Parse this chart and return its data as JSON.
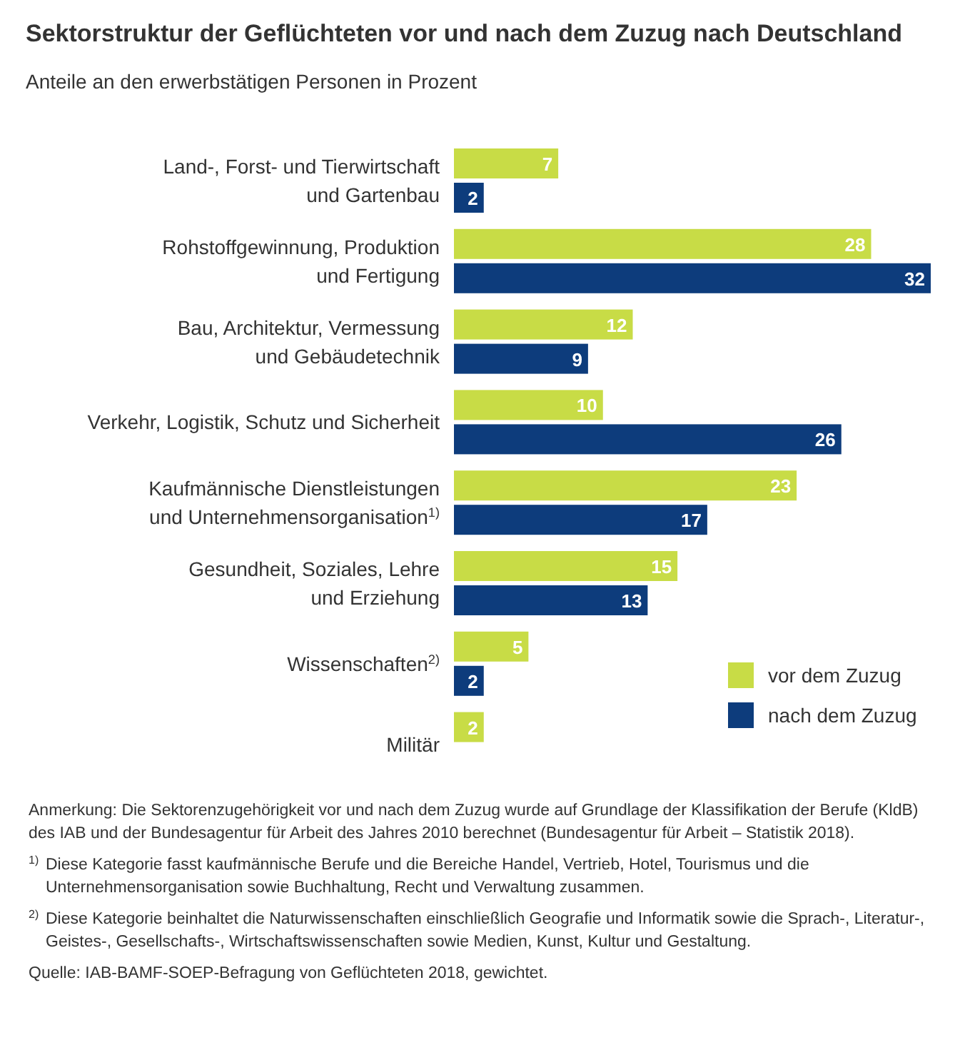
{
  "chart_data": {
    "type": "bar",
    "orientation": "horizontal",
    "title": "Sektorstruktur der Geflüchteten vor und nach dem Zuzug nach Deutschland",
    "subtitle": "Anteile an den erwerbstätigen Personen in Prozent",
    "categories": [
      "Land-, Forst- und Tierwirtschaft und Gartenbau",
      "Rohstoffgewinnung, Produktion und Fertigung",
      "Bau, Architektur, Vermessung und Gebäudetechnik",
      "Verkehr, Logistik, Schutz und Sicherheit",
      "Kaufmännische Dienstleistungen und Unternehmensorganisation$^{1)}$",
      "Gesundheit, Soziales, Lehre und Erziehung",
      "Wissenschaften$^{2)}$",
      "Militär"
    ],
    "series": [
      {
        "name": "vor dem Zuzug",
        "color": "#c8dc46",
        "values": [
          7,
          28,
          12,
          10,
          23,
          15,
          5,
          2
        ]
      },
      {
        "name": "nach dem Zuzug",
        "color": "#0d3c7c",
        "values": [
          2,
          32,
          9,
          26,
          17,
          13,
          2,
          null
        ]
      }
    ],
    "data_labels": true,
    "legend": "bottom right",
    "annotations": [
      "Anmerkung: Die Sektorenzugehörigkeit vor und nach dem Zuzug wurde auf Grundlage der Klassifikation der Berufe (KldB) des IAB und der Bundesagentur für Arbeit des Jahres 2010 berechnet (Bundesagentur für Arbeit – Statistik 2018).",
      "$^{1)}$ Diese Kategorie fasst kaufmännische Berufe und die Bereiche Handel, Vertrieb, Hotel, Tourismus und die Unternehmensorganisation sowie Buchhaltung, Recht und Verwaltung zusammen.",
      "$^{2)}$ Diese Kategorie beinhaltet die Naturwissenschaften einschließlich Geografie und Informatik sowie die Sprach-, Literatur-, Geistes-, Gesellschafts-, Wirtschaftswissenschaften sowie Medien, Kunst, Kultur und Gestaltung.",
      "Quelle: IAB-BAMF-SOEP-Befragung von Geflüchteten 2018, gewichtet."
    ]
  }
}
